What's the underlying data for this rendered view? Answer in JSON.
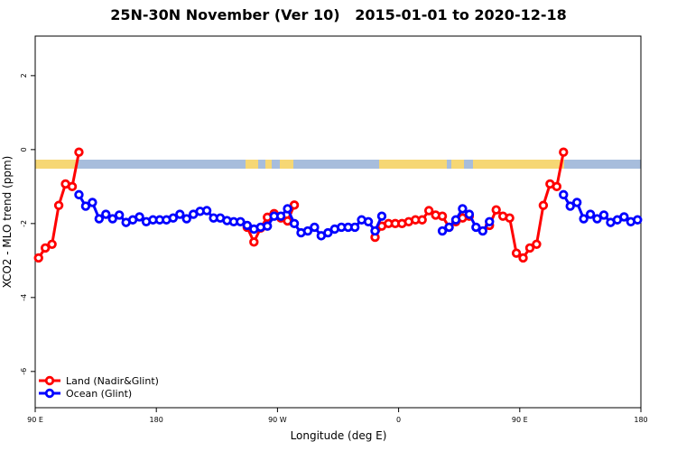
{
  "chart_data": {
    "type": "line",
    "title": "25N-30N November (Ver 10)   2015-01-01 to 2020-12-18",
    "x_label": "Longitude (deg E)",
    "y_label": "XCO2 - MLO trend (ppm)",
    "xlim": [
      90,
      540
    ],
    "xticks": [
      {
        "value": 90,
        "label": "90 E"
      },
      180,
      {
        "value": 270,
        "label": "90 W"
      },
      {
        "value": 360,
        "label": "0"
      },
      {
        "value": 450,
        "label": "90 E"
      },
      {
        "value": 540,
        "label": "180"
      }
    ],
    "ylim": [
      -6.98,
      3.07
    ],
    "yticks": [
      2,
      0,
      -2,
      -4,
      -6
    ],
    "legend": "bottom-left",
    "x": [
      92.5,
      97.5,
      102.5,
      107.5,
      112.5,
      117.5,
      122.5,
      127.5,
      132.5,
      137.5,
      142.5,
      147.5,
      152.5,
      157.5,
      162.5,
      167.5,
      172.5,
      177.5,
      182.5,
      187.5,
      192.5,
      197.5,
      202.5,
      207.5,
      212.5,
      217.5,
      222.5,
      227.5,
      232.5,
      237.5,
      242.5,
      247.5,
      252.5,
      257.5,
      262.5,
      267.5,
      272.5,
      277.5,
      282.5,
      287.5,
      292.5,
      297.5,
      302.5,
      307.5,
      312.5,
      317.5,
      322.5,
      327.5,
      332.5,
      337.5,
      342.5,
      347.5,
      352.5,
      357.5,
      362.5,
      367.5,
      372.5,
      377.5,
      382.5,
      387.5,
      392.5,
      397.5,
      402.5,
      407.5,
      412.5,
      417.5,
      422.5,
      427.5,
      432.5,
      437.5,
      442.5,
      447.5,
      452.5,
      457.5,
      462.5,
      467.5,
      472.5,
      477.5,
      482.5,
      487.5,
      492.5,
      497.5,
      502.5,
      507.5,
      512.5,
      517.5,
      522.5,
      527.5,
      532.5,
      537.5
    ],
    "series": [
      {
        "name": "Land (Nadir&Glint)",
        "color": "#ff0000",
        "values": [
          -2.93,
          -2.66,
          -2.56,
          -1.51,
          -0.93,
          -1.0,
          -0.07,
          null,
          null,
          null,
          null,
          null,
          null,
          null,
          null,
          null,
          null,
          null,
          null,
          null,
          null,
          null,
          null,
          null,
          null,
          null,
          null,
          null,
          null,
          null,
          null,
          -2.1,
          -2.5,
          -2.12,
          -1.83,
          -1.73,
          -1.85,
          -1.93,
          -1.5,
          null,
          null,
          null,
          null,
          null,
          null,
          null,
          null,
          null,
          null,
          null,
          -2.37,
          -2.07,
          -2.0,
          -2.0,
          -2.0,
          -1.95,
          -1.9,
          -1.9,
          -1.65,
          -1.77,
          -1.8,
          -2.1,
          -1.95,
          -1.85,
          -1.8,
          null,
          null,
          -2.05,
          -1.63,
          -1.8,
          -1.85,
          -2.8,
          -2.93,
          -2.66,
          -2.56,
          -1.51,
          -0.93,
          -1.0,
          -0.07,
          null,
          null,
          null,
          null,
          null,
          null,
          null,
          null,
          null,
          null,
          null
        ]
      },
      {
        "name": "Ocean (Glint)",
        "color": "#0000ff",
        "values": [
          null,
          null,
          null,
          null,
          null,
          null,
          -1.22,
          -1.53,
          -1.43,
          -1.87,
          -1.75,
          -1.87,
          -1.77,
          -1.97,
          -1.9,
          -1.82,
          -1.95,
          -1.9,
          -1.9,
          -1.9,
          -1.85,
          -1.75,
          -1.87,
          -1.75,
          -1.67,
          -1.65,
          -1.85,
          -1.85,
          -1.92,
          -1.95,
          -1.95,
          -2.05,
          -2.15,
          -2.1,
          -2.07,
          -1.8,
          -1.8,
          -1.6,
          -2.0,
          -2.25,
          -2.2,
          -2.1,
          -2.33,
          -2.25,
          -2.15,
          -2.1,
          -2.1,
          -2.1,
          -1.9,
          -1.95,
          -2.2,
          -1.8,
          null,
          null,
          null,
          null,
          null,
          null,
          null,
          null,
          -2.2,
          -2.1,
          -1.9,
          -1.6,
          -1.75,
          -2.1,
          -2.2,
          -1.95,
          null,
          null,
          null,
          null,
          null,
          null,
          null,
          null,
          null,
          null,
          -1.22,
          -1.53,
          -1.43,
          -1.87,
          -1.75,
          -1.87,
          -1.77,
          -1.97,
          -1.9,
          -1.82,
          -1.95,
          -1.9
        ]
      }
    ]
  }
}
